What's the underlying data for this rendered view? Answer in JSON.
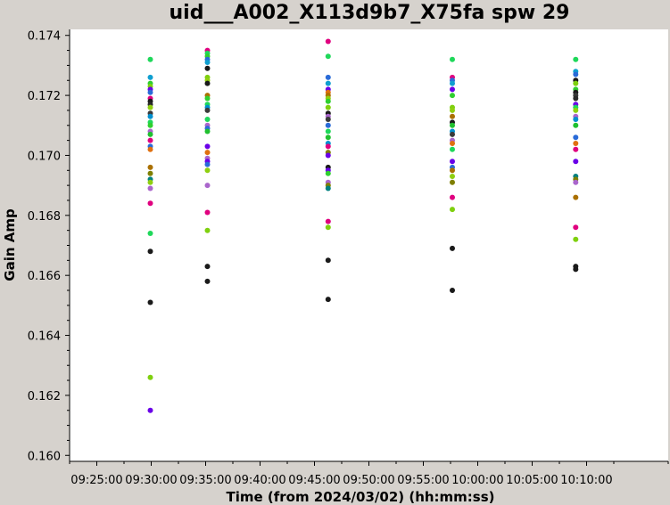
{
  "chart_data": {
    "type": "scatter",
    "title": "uid___A002_X113d9b7_X75fa spw 29",
    "xlabel": "Time (from 2024/03/02) (hh:mm:ss)",
    "ylabel": "Gain Amp",
    "xlim": [
      "09:22:30",
      "10:17:30"
    ],
    "ylim": [
      0.1598,
      0.1742
    ],
    "x_ticks": [
      "09:25:00",
      "09:30:00",
      "09:35:00",
      "09:40:00",
      "09:45:00",
      "09:50:00",
      "09:55:00",
      "10:00:00",
      "10:05:00",
      "10:10:00"
    ],
    "y_ticks": [
      "0.160",
      "0.162",
      "0.164",
      "0.166",
      "0.168",
      "0.170",
      "0.172",
      "0.174"
    ],
    "grid": false,
    "series": [
      {
        "x": "09:29:55",
        "values": [
          [
            0.1732,
            "#1fd85a"
          ],
          [
            0.1726,
            "#0f9fd0"
          ],
          [
            0.1724,
            "#2fcf2f"
          ],
          [
            0.1723,
            "#7fd00f"
          ],
          [
            0.1722,
            "#6a00e8"
          ],
          [
            0.1721,
            "#2a6bd8"
          ],
          [
            0.1719,
            "#e0007f"
          ],
          [
            0.1718,
            "#1a1a1a"
          ],
          [
            0.1717,
            "#2a2a2a"
          ],
          [
            0.1716,
            "#8fcf10"
          ],
          [
            0.1714,
            "#3a3a3a"
          ],
          [
            0.1713,
            "#0090d0"
          ],
          [
            0.1711,
            "#1fd85a"
          ],
          [
            0.171,
            "#2fcf2f"
          ],
          [
            0.1708,
            "#aa66cc"
          ],
          [
            0.1707,
            "#20c030"
          ],
          [
            0.1705,
            "#e0007f"
          ],
          [
            0.1703,
            "#2a6bd8"
          ],
          [
            0.1702,
            "#e07010"
          ],
          [
            0.1696,
            "#aa7000"
          ],
          [
            0.1694,
            "#7f7f00"
          ],
          [
            0.1692,
            "#008080"
          ],
          [
            0.1691,
            "#8fcf10"
          ],
          [
            0.1689,
            "#aa66cc"
          ],
          [
            0.1684,
            "#e0007f"
          ],
          [
            0.1674,
            "#1fd85a"
          ],
          [
            0.1668,
            "#1a1a1a"
          ],
          [
            0.1651,
            "#1a1a1a"
          ],
          [
            0.1626,
            "#7fd00f"
          ],
          [
            0.1615,
            "#6a00e8"
          ]
        ]
      },
      {
        "x": "09:35:10",
        "values": [
          [
            0.1735,
            "#e0007f"
          ],
          [
            0.1734,
            "#1fd85a"
          ],
          [
            0.1733,
            "#2fcf2f"
          ],
          [
            0.1732,
            "#2a6bd8"
          ],
          [
            0.1731,
            "#0f9fd0"
          ],
          [
            0.1729,
            "#1a1a1a"
          ],
          [
            0.1726,
            "#7fd00f"
          ],
          [
            0.1725,
            "#8fcf10"
          ],
          [
            0.1724,
            "#1a1a1a"
          ],
          [
            0.172,
            "#aa7000"
          ],
          [
            0.1719,
            "#2fcf2f"
          ],
          [
            0.1717,
            "#1fd85a"
          ],
          [
            0.1716,
            "#0090d0"
          ],
          [
            0.1715,
            "#3a3a3a"
          ],
          [
            0.1712,
            "#1fd85a"
          ],
          [
            0.171,
            "#aa66cc"
          ],
          [
            0.1709,
            "#2a6bd8"
          ],
          [
            0.1708,
            "#20c030"
          ],
          [
            0.1703,
            "#6a00e8"
          ],
          [
            0.1701,
            "#e07010"
          ],
          [
            0.1699,
            "#aa66cc"
          ],
          [
            0.1698,
            "#6a00e8"
          ],
          [
            0.1697,
            "#2a6bd8"
          ],
          [
            0.1695,
            "#8fcf10"
          ],
          [
            0.169,
            "#aa66cc"
          ],
          [
            0.1681,
            "#e0007f"
          ],
          [
            0.1675,
            "#7fd00f"
          ],
          [
            0.1663,
            "#1a1a1a"
          ],
          [
            0.1658,
            "#1a1a1a"
          ]
        ]
      },
      {
        "x": "09:46:15",
        "values": [
          [
            0.1738,
            "#e0007f"
          ],
          [
            0.1733,
            "#1fd85a"
          ],
          [
            0.1726,
            "#2a6bd8"
          ],
          [
            0.1724,
            "#0f9fd0"
          ],
          [
            0.1722,
            "#6a00e8"
          ],
          [
            0.1721,
            "#e07010"
          ],
          [
            0.172,
            "#aa7000"
          ],
          [
            0.1719,
            "#8fcf10"
          ],
          [
            0.1718,
            "#2fcf2f"
          ],
          [
            0.1716,
            "#7fd00f"
          ],
          [
            0.1714,
            "#1a1a1a"
          ],
          [
            0.1713,
            "#aa66cc"
          ],
          [
            0.1712,
            "#3a3a3a"
          ],
          [
            0.171,
            "#2a6bd8"
          ],
          [
            0.1708,
            "#1fd85a"
          ],
          [
            0.1706,
            "#20c030"
          ],
          [
            0.1704,
            "#0090d0"
          ],
          [
            0.1703,
            "#e0007f"
          ],
          [
            0.1701,
            "#7f7f00"
          ],
          [
            0.17,
            "#6a00e8"
          ],
          [
            0.1696,
            "#1a1a1a"
          ],
          [
            0.1695,
            "#6a00e8"
          ],
          [
            0.1694,
            "#2fcf2f"
          ],
          [
            0.1691,
            "#aa66cc"
          ],
          [
            0.169,
            "#7f7f00"
          ],
          [
            0.1689,
            "#008080"
          ],
          [
            0.1678,
            "#e0007f"
          ],
          [
            0.1676,
            "#7fd00f"
          ],
          [
            0.1665,
            "#1a1a1a"
          ],
          [
            0.1652,
            "#1a1a1a"
          ]
        ]
      },
      {
        "x": "09:57:40",
        "values": [
          [
            0.1732,
            "#1fd85a"
          ],
          [
            0.1726,
            "#e0007f"
          ],
          [
            0.1725,
            "#2a6bd8"
          ],
          [
            0.1724,
            "#0f9fd0"
          ],
          [
            0.1722,
            "#6a00e8"
          ],
          [
            0.172,
            "#2fcf2f"
          ],
          [
            0.1716,
            "#7fd00f"
          ],
          [
            0.1715,
            "#8fcf10"
          ],
          [
            0.1713,
            "#aa7000"
          ],
          [
            0.1711,
            "#1a1a1a"
          ],
          [
            0.171,
            "#20c030"
          ],
          [
            0.1708,
            "#0090d0"
          ],
          [
            0.1707,
            "#3a3a3a"
          ],
          [
            0.1705,
            "#aa66cc"
          ],
          [
            0.1704,
            "#e07010"
          ],
          [
            0.1702,
            "#1fd85a"
          ],
          [
            0.1698,
            "#6a00e8"
          ],
          [
            0.1696,
            "#2a6bd8"
          ],
          [
            0.1695,
            "#aa7000"
          ],
          [
            0.1693,
            "#8fcf10"
          ],
          [
            0.1691,
            "#7f7f00"
          ],
          [
            0.1686,
            "#e0007f"
          ],
          [
            0.1682,
            "#7fd00f"
          ],
          [
            0.1669,
            "#1a1a1a"
          ],
          [
            0.1655,
            "#1a1a1a"
          ]
        ]
      },
      {
        "x": "10:09:00",
        "values": [
          [
            0.1732,
            "#1fd85a"
          ],
          [
            0.1728,
            "#0f9fd0"
          ],
          [
            0.1727,
            "#2a6bd8"
          ],
          [
            0.1725,
            "#1a1a1a"
          ],
          [
            0.1724,
            "#7fd00f"
          ],
          [
            0.1722,
            "#2fcf2f"
          ],
          [
            0.1721,
            "#1a1a1a"
          ],
          [
            0.172,
            "#3a3a3a"
          ],
          [
            0.1719,
            "#2a2a2a"
          ],
          [
            0.1717,
            "#6a00e8"
          ],
          [
            0.1716,
            "#1fd85a"
          ],
          [
            0.1715,
            "#8fcf10"
          ],
          [
            0.1713,
            "#aa66cc"
          ],
          [
            0.1712,
            "#0090d0"
          ],
          [
            0.171,
            "#20c030"
          ],
          [
            0.1706,
            "#2a6bd8"
          ],
          [
            0.1704,
            "#e07010"
          ],
          [
            0.1702,
            "#e0007f"
          ],
          [
            0.1698,
            "#6a00e8"
          ],
          [
            0.1693,
            "#008080"
          ],
          [
            0.1692,
            "#7f7f00"
          ],
          [
            0.1691,
            "#aa66cc"
          ],
          [
            0.1686,
            "#aa7000"
          ],
          [
            0.1676,
            "#e0007f"
          ],
          [
            0.1672,
            "#7fd00f"
          ],
          [
            0.1663,
            "#1a1a1a"
          ],
          [
            0.1662,
            "#1a1a1a"
          ]
        ]
      }
    ]
  }
}
